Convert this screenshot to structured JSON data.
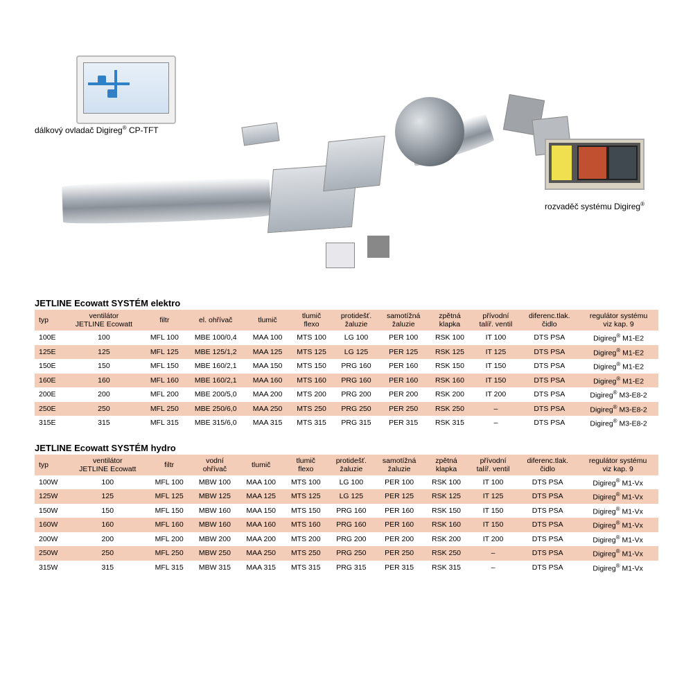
{
  "image": {
    "label_left_html": "dálkový ovladač Digireg<sup>®</sup> CP-TFT",
    "label_right_html": "rozvaděč systému Digireg<sup>®</sup>"
  },
  "colors": {
    "header_bg": "#f4cdb8",
    "row_alt_bg": "#f4cdb8",
    "page_bg": "#ffffff",
    "text": "#000000"
  },
  "table1": {
    "title": "JETLINE Ecowatt SYSTÉM elektro",
    "columns": [
      "typ",
      "ventilátor\nJETLINE Ecowatt",
      "filtr",
      "el. ohřívač",
      "tlumič",
      "tlumič\nflexo",
      "protidešť.\nžaluzie",
      "samotížná\nžaluzie",
      "zpětná\nklapka",
      "přívodní\ntalíř. ventil",
      "diferenc.tlak.\nčidlo",
      "regulátor systému\nviz kap. 9"
    ],
    "rows": [
      [
        "100E",
        "100",
        "MFL 100",
        "MBE 100/0,4",
        "MAA 100",
        "MTS 100",
        "LG 100",
        "PER 100",
        "RSK 100",
        "IT 100",
        "DTS PSA",
        "Digireg® M1-E2"
      ],
      [
        "125E",
        "125",
        "MFL 125",
        "MBE 125/1,2",
        "MAA 125",
        "MTS 125",
        "LG 125",
        "PER 125",
        "RSK 125",
        "IT 125",
        "DTS PSA",
        "Digireg® M1-E2"
      ],
      [
        "150E",
        "150",
        "MFL 150",
        "MBE 160/2,1",
        "MAA 150",
        "MTS 150",
        "PRG 160",
        "PER 160",
        "RSK 150",
        "IT 150",
        "DTS PSA",
        "Digireg® M1-E2"
      ],
      [
        "160E",
        "160",
        "MFL 160",
        "MBE 160/2,1",
        "MAA 160",
        "MTS 160",
        "PRG 160",
        "PER 160",
        "RSK 160",
        "IT 150",
        "DTS PSA",
        "Digireg® M1-E2"
      ],
      [
        "200E",
        "200",
        "MFL 200",
        "MBE 200/5,0",
        "MAA 200",
        "MTS 200",
        "PRG 200",
        "PER 200",
        "RSK 200",
        "IT 200",
        "DTS PSA",
        "Digireg® M3-E8-2"
      ],
      [
        "250E",
        "250",
        "MFL 250",
        "MBE 250/6,0",
        "MAA 250",
        "MTS 250",
        "PRG 250",
        "PER 250",
        "RSK 250",
        "–",
        "DTS PSA",
        "Digireg® M3-E8-2"
      ],
      [
        "315E",
        "315",
        "MFL 315",
        "MBE 315/6,0",
        "MAA 315",
        "MTS 315",
        "PRG 315",
        "PER 315",
        "RSK 315",
        "–",
        "DTS PSA",
        "Digireg® M3-E8-2"
      ]
    ],
    "alt_row_indices": [
      1,
      3,
      5
    ]
  },
  "table2": {
    "title": "JETLINE Ecowatt SYSTÉM hydro",
    "columns": [
      "typ",
      "ventilátor\nJETLINE Ecowatt",
      "filtr",
      "vodní\nohřívač",
      "tlumič",
      "tlumič\nflexo",
      "protidešť.\nžaluzie",
      "samotížná\nžaluzie",
      "zpětná\nklapka",
      "přívodní\ntalíř. ventil",
      "diferenc.tlak.\nčidlo",
      "regulátor systému\nviz kap. 9"
    ],
    "rows": [
      [
        "100W",
        "100",
        "MFL 100",
        "MBW 100",
        "MAA 100",
        "MTS 100",
        "LG 100",
        "PER 100",
        "RSK 100",
        "IT 100",
        "DTS PSA",
        "Digireg® M1-Vx"
      ],
      [
        "125W",
        "125",
        "MFL 125",
        "MBW 125",
        "MAA 125",
        "MTS 125",
        "LG 125",
        "PER 125",
        "RSK 125",
        "IT 125",
        "DTS PSA",
        "Digireg® M1-Vx"
      ],
      [
        "150W",
        "150",
        "MFL 150",
        "MBW 160",
        "MAA 150",
        "MTS 150",
        "PRG 160",
        "PER 160",
        "RSK 150",
        "IT 150",
        "DTS PSA",
        "Digireg® M1-Vx"
      ],
      [
        "160W",
        "160",
        "MFL 160",
        "MBW 160",
        "MAA 160",
        "MTS 160",
        "PRG 160",
        "PER 160",
        "RSK 160",
        "IT 150",
        "DTS PSA",
        "Digireg® M1-Vx"
      ],
      [
        "200W",
        "200",
        "MFL 200",
        "MBW 200",
        "MAA 200",
        "MTS 200",
        "PRG 200",
        "PER 200",
        "RSK 200",
        "IT 200",
        "DTS PSA",
        "Digireg® M1-Vx"
      ],
      [
        "250W",
        "250",
        "MFL 250",
        "MBW 250",
        "MAA 250",
        "MTS 250",
        "PRG 250",
        "PER 250",
        "RSK 250",
        "–",
        "DTS PSA",
        "Digireg® M1-Vx"
      ],
      [
        "315W",
        "315",
        "MFL 315",
        "MBW 315",
        "MAA 315",
        "MTS 315",
        "PRG 315",
        "PER 315",
        "RSK 315",
        "–",
        "DTS PSA",
        "Digireg® M1-Vx"
      ]
    ],
    "alt_row_indices": [
      1,
      3,
      5
    ]
  }
}
